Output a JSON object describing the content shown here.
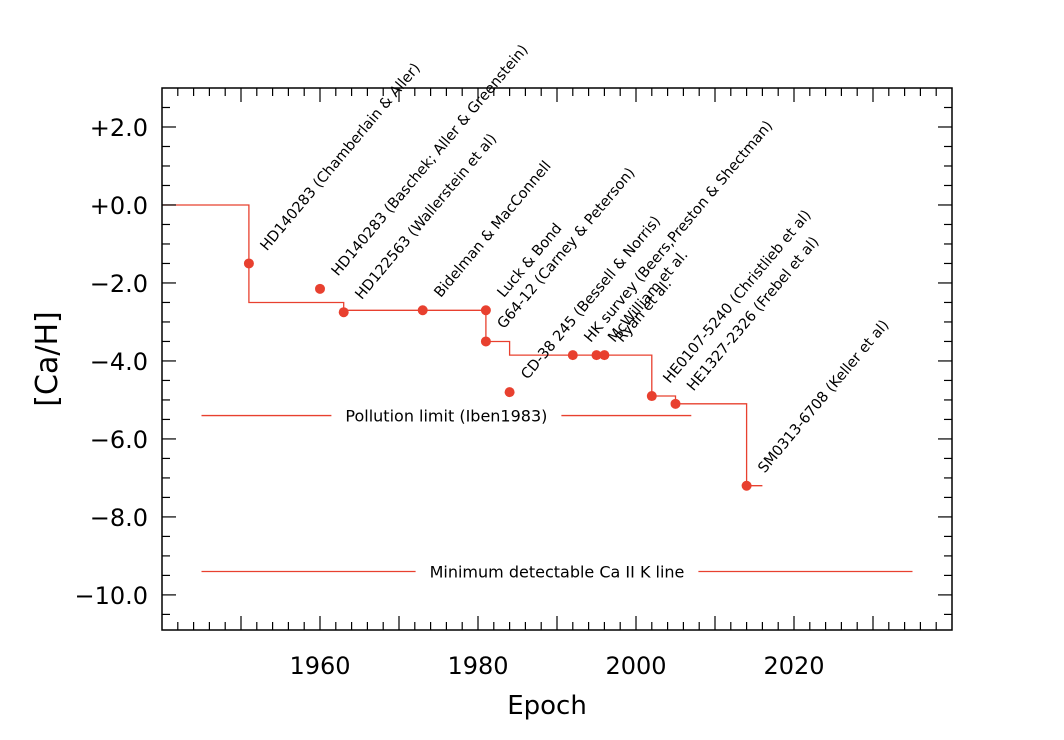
{
  "chart_data": {
    "type": "line",
    "xlabel": "Epoch",
    "ylabel": "[Ca/H]",
    "xlim": [
      1940,
      2040
    ],
    "ylim": [
      -10.9,
      3.0
    ],
    "x_ticks": [
      1960,
      1980,
      2000,
      2020
    ],
    "x_tick_labels": [
      "1960",
      "1980",
      "2000",
      "2020"
    ],
    "y_ticks": [
      2,
      0,
      -2,
      -4,
      -6,
      -8,
      -10
    ],
    "y_tick_labels": [
      "+2.0",
      "+0.0",
      "−2.0",
      "−4.0",
      "−6.0",
      "−8.0",
      "−10.0"
    ],
    "grid": false,
    "line_color": "#e8402f",
    "points": [
      {
        "x": 1951,
        "y": -1.5,
        "label": "HD140283 (Chamberlain & Aller)"
      },
      {
        "x": 1960,
        "y": -2.15,
        "label": "HD140283 (Baschek; Aller & Greenstein)"
      },
      {
        "x": 1963,
        "y": -2.75,
        "label": "HD122563 (Wallerstein et al)"
      },
      {
        "x": 1973,
        "y": -2.7,
        "label": "Bidelman & MacConnell"
      },
      {
        "x": 1981,
        "y": -2.7,
        "label": "Luck & Bond"
      },
      {
        "x": 1981,
        "y": -3.5,
        "label": "G64-12 (Carney & Peterson)"
      },
      {
        "x": 1984,
        "y": -4.8,
        "label": "CD-38 245 (Bessell & Norris)"
      },
      {
        "x": 1992,
        "y": -3.85,
        "label": "HK survey (Beers,Preston & Shectman)"
      },
      {
        "x": 1995,
        "y": -3.85,
        "label": "McWilliam et al."
      },
      {
        "x": 1996,
        "y": -3.85,
        "label": "Ryan et al."
      },
      {
        "x": 2002,
        "y": -4.9,
        "label": "HE0107-5240 (Christlieb et al)"
      },
      {
        "x": 2005,
        "y": -5.1,
        "label": "HE1327-2326 (Frebel et al)"
      },
      {
        "x": 2014,
        "y": -7.2,
        "label": "SM0313-6708 (Keller et al)"
      }
    ],
    "envelope": [
      [
        1940,
        0.0
      ],
      [
        1951,
        0.0
      ],
      [
        1951,
        -2.5
      ],
      [
        1963,
        -2.5
      ],
      [
        1963,
        -2.7
      ],
      [
        1981,
        -2.7
      ],
      [
        1981,
        -3.5
      ],
      [
        1984,
        -3.5
      ],
      [
        1984,
        -3.85
      ],
      [
        2002,
        -3.85
      ],
      [
        2002,
        -4.9
      ],
      [
        2005,
        -4.9
      ],
      [
        2005,
        -5.1
      ],
      [
        2014,
        -5.1
      ],
      [
        2014,
        -7.2
      ],
      [
        2016,
        -7.2
      ]
    ],
    "reference_lines": [
      {
        "label": "Pollution limit (Iben1983)",
        "y": -5.4,
        "x_from": 1945,
        "x_to": 2007
      },
      {
        "label": "Minimum detectable Ca II K line",
        "y": -9.4,
        "x_from": 1945,
        "x_to": 2035
      }
    ]
  }
}
